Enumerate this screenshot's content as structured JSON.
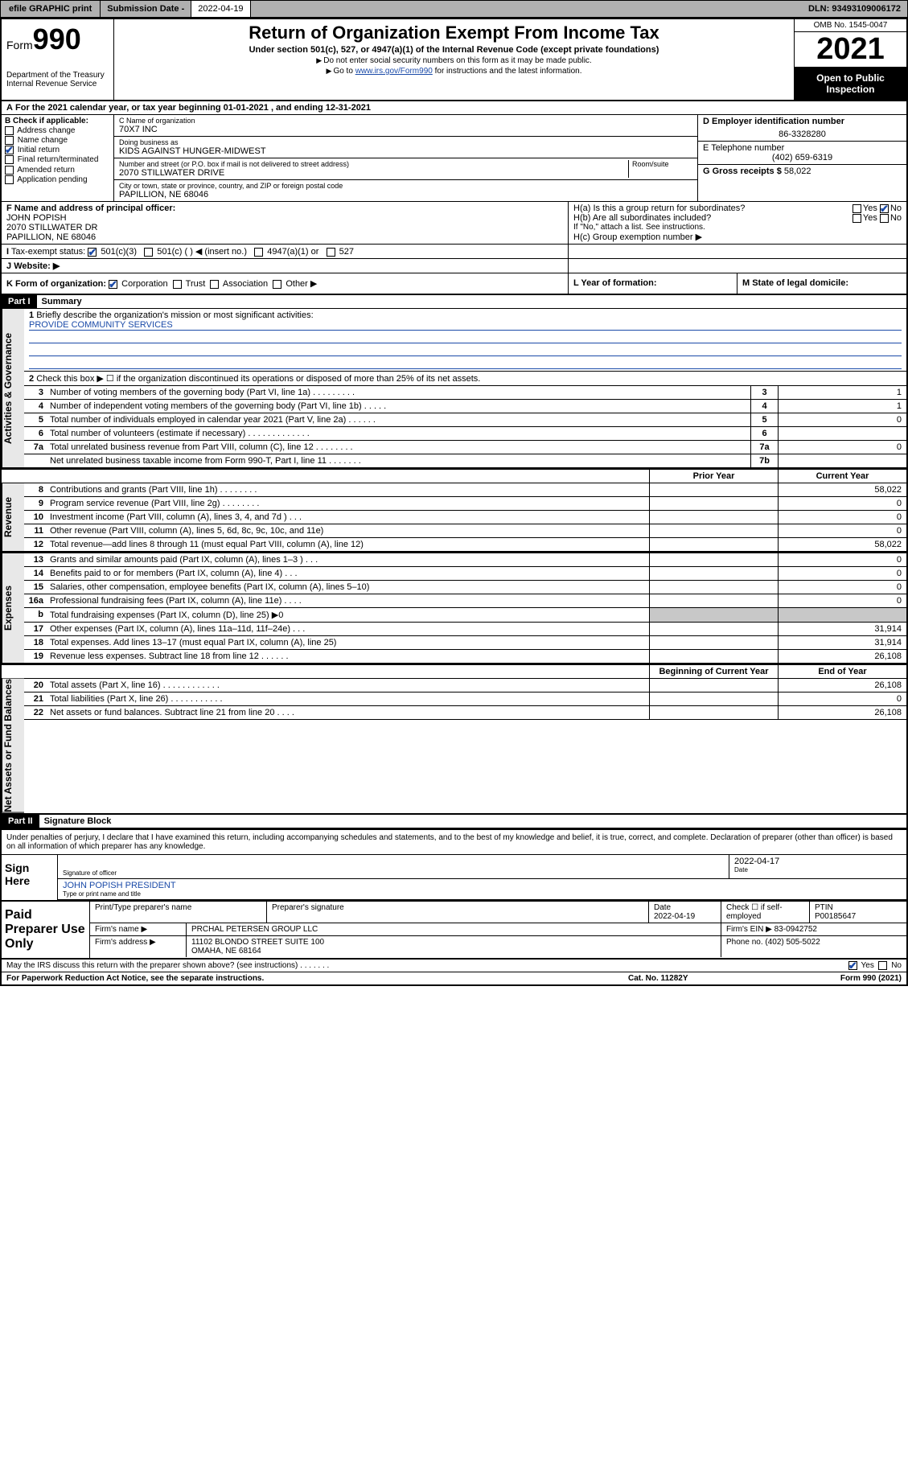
{
  "topbar": {
    "efile": "efile GRAPHIC print",
    "submission_label": "Submission Date",
    "submission_date": "2022-04-19",
    "dln_label": "DLN:",
    "dln": "93493109006172"
  },
  "header": {
    "form_word": "Form",
    "form_num": "990",
    "dept": "Department of the Treasury",
    "irs": "Internal Revenue Service",
    "title": "Return of Organization Exempt From Income Tax",
    "subtitle": "Under section 501(c), 527, or 4947(a)(1) of the Internal Revenue Code (except private foundations)",
    "note1": "Do not enter social security numbers on this form as it may be made public.",
    "note2_pre": "Go to ",
    "note2_link": "www.irs.gov/Form990",
    "note2_post": " for instructions and the latest information.",
    "omb": "OMB No. 1545-0047",
    "year": "2021",
    "open": "Open to Public Inspection"
  },
  "lineA": "For the 2021 calendar year, or tax year beginning 01-01-2021   , and ending 12-31-2021",
  "colB": {
    "title": "B Check if applicable:",
    "opts": [
      "Address change",
      "Name change",
      "Initial return",
      "Final return/terminated",
      "Amended return",
      "Application pending"
    ],
    "checked_idx": 2
  },
  "colC": {
    "name_lbl": "C Name of organization",
    "name": "70X7 INC",
    "dba_lbl": "Doing business as",
    "dba": "KIDS AGAINST HUNGER-MIDWEST",
    "street_lbl": "Number and street (or P.O. box if mail is not delivered to street address)",
    "room_lbl": "Room/suite",
    "street": "2070 STILLWATER DRIVE",
    "city_lbl": "City or town, state or province, country, and ZIP or foreign postal code",
    "city": "PAPILLION, NE  68046"
  },
  "colD": {
    "ein_lbl": "D Employer identification number",
    "ein": "86-3328280",
    "phone_lbl": "E Telephone number",
    "phone": "(402) 659-6319",
    "gross_lbl": "G Gross receipts $",
    "gross": "58,022"
  },
  "secF": {
    "lbl": "F Name and address of principal officer:",
    "name": "JOHN POPISH",
    "addr1": "2070 STILLWATER DR",
    "addr2": "PAPILLION, NE  68046"
  },
  "secH": {
    "ha": "H(a)  Is this a group return for subordinates?",
    "hb": "H(b)  Are all subordinates included?",
    "hb_note": "If \"No,\" attach a list. See instructions.",
    "hc": "H(c)  Group exemption number ▶",
    "yes": "Yes",
    "no": "No"
  },
  "lineI": {
    "lbl": "Tax-exempt status:",
    "opts": [
      "501(c)(3)",
      "501(c) (   ) ◀ (insert no.)",
      "4947(a)(1) or",
      "527"
    ]
  },
  "lineJ": "Website: ▶",
  "lineK": {
    "k": "K Form of organization:",
    "opts": [
      "Corporation",
      "Trust",
      "Association",
      "Other ▶"
    ],
    "l": "L Year of formation:",
    "m": "M State of legal domicile:"
  },
  "partI": {
    "hd": "Part I",
    "title": "Summary",
    "q1": "Briefly describe the organization's mission or most significant activities:",
    "mission": "PROVIDE COMMUNITY SERVICES",
    "q2": "Check this box ▶ ☐  if the organization discontinued its operations or disposed of more than 25% of its net assets.",
    "rows3_7": [
      {
        "n": "3",
        "d": "Number of voting members of the governing body (Part VI, line 1a)  .    .    .    .    .    .    .    .    .",
        "b": "3",
        "v": "1"
      },
      {
        "n": "4",
        "d": "Number of independent voting members of the governing body (Part VI, line 1b)  .    .    .    .    .",
        "b": "4",
        "v": "1"
      },
      {
        "n": "5",
        "d": "Total number of individuals employed in calendar year 2021 (Part V, line 2a)   .    .    .    .    .    .",
        "b": "5",
        "v": "0"
      },
      {
        "n": "6",
        "d": "Total number of volunteers (estimate if necessary)   .    .    .    .    .    .    .    .    .    .    .    .    .",
        "b": "6",
        "v": ""
      },
      {
        "n": "7a",
        "d": "Total unrelated business revenue from Part VIII, column (C), line 12   .    .    .    .    .    .    .    .",
        "b": "7a",
        "v": "0"
      },
      {
        "n": "",
        "d": "Net unrelated business taxable income from Form 990-T, Part I, line 11   .    .    .    .    .    .    .",
        "b": "7b",
        "v": ""
      }
    ],
    "prior": "Prior Year",
    "current": "Current Year",
    "rev": [
      {
        "n": "8",
        "d": "Contributions and grants (Part VIII, line 1h)    .    .    .    .    .    .    .    .",
        "p": "",
        "c": "58,022"
      },
      {
        "n": "9",
        "d": "Program service revenue (Part VIII, line 2g)   .    .    .    .    .    .    .    .",
        "p": "",
        "c": "0"
      },
      {
        "n": "10",
        "d": "Investment income (Part VIII, column (A), lines 3, 4, and 7d )   .    .    .",
        "p": "",
        "c": "0"
      },
      {
        "n": "11",
        "d": "Other revenue (Part VIII, column (A), lines 5, 6d, 8c, 9c, 10c, and 11e)",
        "p": "",
        "c": "0"
      },
      {
        "n": "12",
        "d": "Total revenue—add lines 8 through 11 (must equal Part VIII, column (A), line 12)",
        "p": "",
        "c": "58,022"
      }
    ],
    "exp": [
      {
        "n": "13",
        "d": "Grants and similar amounts paid (Part IX, column (A), lines 1–3 )   .    .    .",
        "p": "",
        "c": "0"
      },
      {
        "n": "14",
        "d": "Benefits paid to or for members (Part IX, column (A), line 4)   .    .    .",
        "p": "",
        "c": "0"
      },
      {
        "n": "15",
        "d": "Salaries, other compensation, employee benefits (Part IX, column (A), lines 5–10)",
        "p": "",
        "c": "0"
      },
      {
        "n": "16a",
        "d": "Professional fundraising fees (Part IX, column (A), line 11e)   .    .    .    .",
        "p": "",
        "c": "0"
      },
      {
        "n": "b",
        "d": "Total fundraising expenses (Part IX, column (D), line 25) ▶0",
        "p": "grey",
        "c": "grey"
      },
      {
        "n": "17",
        "d": "Other expenses (Part IX, column (A), lines 11a–11d, 11f–24e)   .    .    .",
        "p": "",
        "c": "31,914"
      },
      {
        "n": "18",
        "d": "Total expenses. Add lines 13–17 (must equal Part IX, column (A), line 25)",
        "p": "",
        "c": "31,914"
      },
      {
        "n": "19",
        "d": "Revenue less expenses. Subtract line 18 from line 12   .    .    .    .    .    .",
        "p": "",
        "c": "26,108"
      }
    ],
    "boy": "Beginning of Current Year",
    "eoy": "End of Year",
    "net": [
      {
        "n": "20",
        "d": "Total assets (Part X, line 16)   .    .    .    .    .    .    .    .    .    .    .    .",
        "p": "",
        "c": "26,108"
      },
      {
        "n": "21",
        "d": "Total liabilities (Part X, line 26)   .    .    .    .    .    .    .    .    .    .    .",
        "p": "",
        "c": "0"
      },
      {
        "n": "22",
        "d": "Net assets or fund balances. Subtract line 21 from line 20   .    .    .    .",
        "p": "",
        "c": "26,108"
      }
    ],
    "vtabs": [
      "Activities & Governance",
      "Revenue",
      "Expenses",
      "Net Assets or Fund Balances"
    ]
  },
  "partII": {
    "hd": "Part II",
    "title": "Signature Block",
    "perjury": "Under penalties of perjury, I declare that I have examined this return, including accompanying schedules and statements, and to the best of my knowledge and belief, it is true, correct, and complete. Declaration of preparer (other than officer) is based on all information of which preparer has any knowledge.",
    "sign_here": "Sign Here",
    "sig_officer": "Signature of officer",
    "sig_date_lbl": "Date",
    "sig_date": "2022-04-17",
    "officer_name": "JOHN POPISH PRESIDENT",
    "officer_lbl": "Type or print name and title"
  },
  "prep": {
    "lab": "Paid Preparer Use Only",
    "h1": "Print/Type preparer's name",
    "h2": "Preparer's signature",
    "h3": "Date",
    "h3v": "2022-04-19",
    "h4": "Check ☐ if self-employed",
    "h5": "PTIN",
    "h5v": "P00185647",
    "firm_name_lbl": "Firm's name      ▶",
    "firm_name": "PRCHAL PETERSEN GROUP LLC",
    "firm_ein_lbl": "Firm's EIN ▶",
    "firm_ein": "83-0942752",
    "firm_addr_lbl": "Firm's address ▶",
    "firm_addr1": "11102 BLONDO STREET SUITE 100",
    "firm_addr2": "OMAHA, NE  68164",
    "phone_lbl": "Phone no.",
    "phone": "(402) 505-5022"
  },
  "footer": {
    "discuss": "May the IRS discuss this return with the preparer shown above? (see instructions)   .    .    .    .    .    .    .",
    "yes": "Yes",
    "no": "No",
    "pra": "For Paperwork Reduction Act Notice, see the separate instructions.",
    "cat": "Cat. No. 11282Y",
    "form": "Form 990 (2021)"
  }
}
